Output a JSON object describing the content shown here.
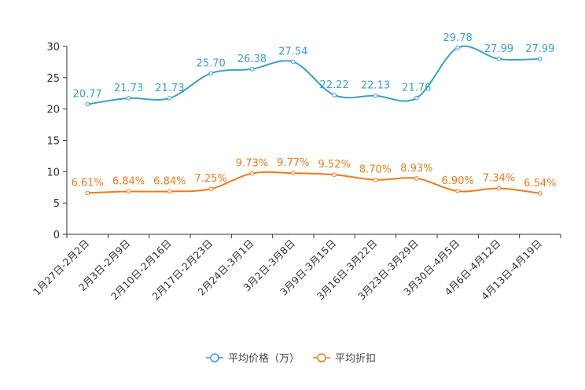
{
  "chart_data": {
    "type": "line",
    "title": "",
    "xlabel": "",
    "ylabel": "",
    "ylim": [
      0,
      30
    ],
    "yticks": [
      0,
      5,
      10,
      15,
      20,
      25,
      30
    ],
    "grid": false,
    "legend": "bottom-center",
    "categories": [
      "1月27日-2月2日",
      "2月3日-2月9日",
      "2月10日-2月16日",
      "2月17日-2月23日",
      "2月24日-3月1日",
      "3月2日-3月8日",
      "3月9日-3月15日",
      "3月16日-3月22日",
      "3月23日-3月29日",
      "3月30日-4月5日",
      "4月6日-4月12日",
      "4月13日-4月19日"
    ],
    "series": [
      {
        "name": "平均价格（万）",
        "color": "#3a9fd0",
        "values": [
          20.77,
          21.73,
          21.73,
          25.7,
          26.38,
          27.54,
          22.22,
          22.13,
          21.76,
          29.78,
          27.99,
          27.99
        ],
        "labels": [
          "20.77",
          "21.73",
          "21.73",
          "25.70",
          "26.38",
          "27.54",
          "22.22",
          "22.13",
          "21.76",
          "29.78",
          "27.99",
          "27.99"
        ]
      },
      {
        "name": "平均折扣",
        "color": "#f07a1a",
        "values": [
          6.61,
          6.84,
          6.84,
          7.25,
          9.73,
          9.77,
          9.52,
          8.7,
          8.93,
          6.9,
          7.34,
          6.54
        ],
        "labels": [
          "6.61%",
          "6.84%",
          "6.84%",
          "7.25%",
          "9.73%",
          "9.77%",
          "9.52%",
          "8.70%",
          "8.93%",
          "6.90%",
          "7.34%",
          "6.54%"
        ]
      }
    ]
  }
}
